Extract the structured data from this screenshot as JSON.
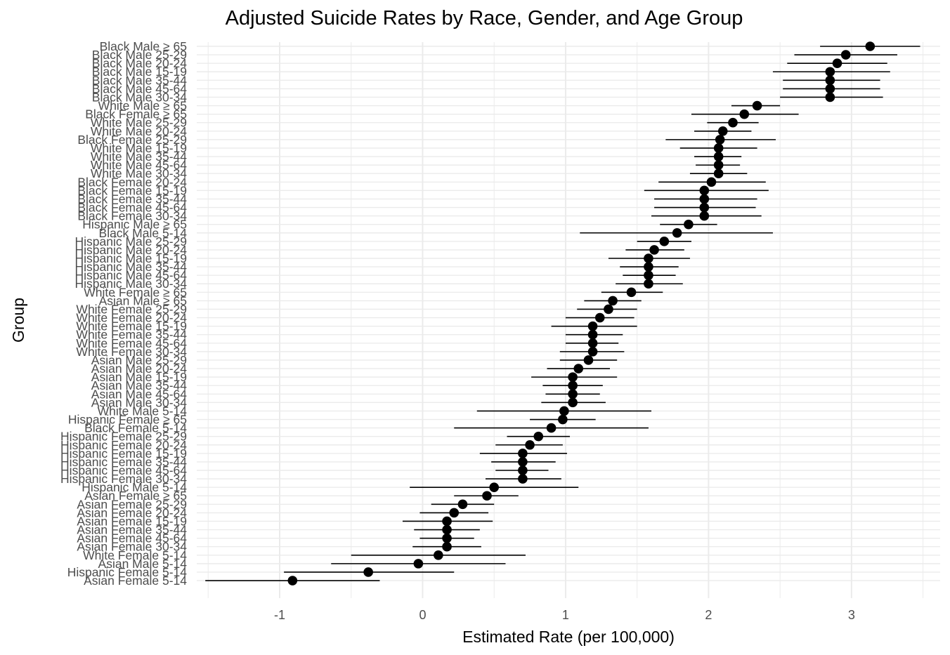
{
  "chart_data": {
    "type": "scatter",
    "title": "Adjusted Suicide Rates by Race, Gender, and Age Group",
    "xlabel": "Estimated Rate (per 100,000)",
    "ylabel": "Group",
    "xlim": [
      -1.58,
      3.62
    ],
    "xticks": [
      -1,
      0,
      1,
      2,
      3
    ],
    "grid": true,
    "legend": "none",
    "point_color": "#000000",
    "errorbar_color": "#000000",
    "grid_color": "#ebebeb",
    "points": [
      {
        "group": "Black Male ≥ 65",
        "estimate": 3.13,
        "lower": 2.78,
        "upper": 3.48
      },
      {
        "group": "Black Male 25-29",
        "estimate": 2.96,
        "lower": 2.6,
        "upper": 3.32
      },
      {
        "group": "Black Male 20-24",
        "estimate": 2.9,
        "lower": 2.55,
        "upper": 3.25
      },
      {
        "group": "Black Male 15-19",
        "estimate": 2.85,
        "lower": 2.45,
        "upper": 3.27
      },
      {
        "group": "Black Male 35-44",
        "estimate": 2.85,
        "lower": 2.52,
        "upper": 3.2
      },
      {
        "group": "Black Male 45-64",
        "estimate": 2.85,
        "lower": 2.52,
        "upper": 3.2
      },
      {
        "group": "Black Male 30-34",
        "estimate": 2.85,
        "lower": 2.5,
        "upper": 3.22
      },
      {
        "group": "White Male ≥ 65",
        "estimate": 2.34,
        "lower": 2.16,
        "upper": 2.5
      },
      {
        "group": "Black Female ≥ 65",
        "estimate": 2.25,
        "lower": 1.88,
        "upper": 2.63
      },
      {
        "group": "White Male 25-29",
        "estimate": 2.17,
        "lower": 1.99,
        "upper": 2.35
      },
      {
        "group": "White Male 20-24",
        "estimate": 2.1,
        "lower": 1.9,
        "upper": 2.3
      },
      {
        "group": "Black Female 25-29",
        "estimate": 2.08,
        "lower": 1.7,
        "upper": 2.47
      },
      {
        "group": "White Male 15-19",
        "estimate": 2.07,
        "lower": 1.8,
        "upper": 2.34
      },
      {
        "group": "White Male 35-44",
        "estimate": 2.07,
        "lower": 1.9,
        "upper": 2.23
      },
      {
        "group": "White Male 45-64",
        "estimate": 2.07,
        "lower": 1.91,
        "upper": 2.22
      },
      {
        "group": "White Male 30-34",
        "estimate": 2.07,
        "lower": 1.87,
        "upper": 2.27
      },
      {
        "group": "Black Female 20-24",
        "estimate": 2.02,
        "lower": 1.65,
        "upper": 2.4
      },
      {
        "group": "Black Female 15-19",
        "estimate": 1.97,
        "lower": 1.55,
        "upper": 2.42
      },
      {
        "group": "Black Female 35-44",
        "estimate": 1.97,
        "lower": 1.62,
        "upper": 2.34
      },
      {
        "group": "Black Female 45-64",
        "estimate": 1.97,
        "lower": 1.62,
        "upper": 2.33
      },
      {
        "group": "Black Female 30-34",
        "estimate": 1.97,
        "lower": 1.6,
        "upper": 2.37
      },
      {
        "group": "Hispanic Male ≥ 65",
        "estimate": 1.86,
        "lower": 1.66,
        "upper": 2.06
      },
      {
        "group": "Black Male 5-14",
        "estimate": 1.78,
        "lower": 1.1,
        "upper": 2.45
      },
      {
        "group": "Hispanic Male 25-29",
        "estimate": 1.69,
        "lower": 1.5,
        "upper": 1.88
      },
      {
        "group": "Hispanic Male 20-24",
        "estimate": 1.62,
        "lower": 1.42,
        "upper": 1.83
      },
      {
        "group": "Hispanic Male 15-19",
        "estimate": 1.58,
        "lower": 1.3,
        "upper": 1.87
      },
      {
        "group": "Hispanic Male 35-44",
        "estimate": 1.58,
        "lower": 1.38,
        "upper": 1.79
      },
      {
        "group": "Hispanic Male 45-64",
        "estimate": 1.58,
        "lower": 1.4,
        "upper": 1.77
      },
      {
        "group": "Hispanic Male 30-34",
        "estimate": 1.58,
        "lower": 1.35,
        "upper": 1.82
      },
      {
        "group": "White Female ≥ 65",
        "estimate": 1.46,
        "lower": 1.25,
        "upper": 1.68
      },
      {
        "group": "Asian Male ≥ 65",
        "estimate": 1.33,
        "lower": 1.13,
        "upper": 1.53
      },
      {
        "group": "White Female 25-29",
        "estimate": 1.3,
        "lower": 1.08,
        "upper": 1.5
      },
      {
        "group": "White Female 20-24",
        "estimate": 1.24,
        "lower": 1.0,
        "upper": 1.48
      },
      {
        "group": "White Female 15-19",
        "estimate": 1.19,
        "lower": 0.9,
        "upper": 1.5
      },
      {
        "group": "White Female 35-44",
        "estimate": 1.19,
        "lower": 1.0,
        "upper": 1.4
      },
      {
        "group": "White Female 45-64",
        "estimate": 1.19,
        "lower": 1.0,
        "upper": 1.37
      },
      {
        "group": "White Female 30-34",
        "estimate": 1.19,
        "lower": 0.96,
        "upper": 1.41
      },
      {
        "group": "Asian Male 25-29",
        "estimate": 1.16,
        "lower": 0.96,
        "upper": 1.36
      },
      {
        "group": "Asian Male 20-24",
        "estimate": 1.09,
        "lower": 0.87,
        "upper": 1.31
      },
      {
        "group": "Asian Male 15-19",
        "estimate": 1.05,
        "lower": 0.76,
        "upper": 1.36
      },
      {
        "group": "Asian Male 35-44",
        "estimate": 1.05,
        "lower": 0.84,
        "upper": 1.26
      },
      {
        "group": "Asian Male 45-64",
        "estimate": 1.05,
        "lower": 0.86,
        "upper": 1.24
      },
      {
        "group": "Asian Male 30-34",
        "estimate": 1.05,
        "lower": 0.83,
        "upper": 1.28
      },
      {
        "group": "White Male 5-14",
        "estimate": 0.99,
        "lower": 0.38,
        "upper": 1.6
      },
      {
        "group": "Hispanic Female ≥ 65",
        "estimate": 0.98,
        "lower": 0.75,
        "upper": 1.21
      },
      {
        "group": "Black Female 5-14",
        "estimate": 0.9,
        "lower": 0.22,
        "upper": 1.58
      },
      {
        "group": "Hispanic Female 25-29",
        "estimate": 0.81,
        "lower": 0.59,
        "upper": 1.03
      },
      {
        "group": "Hispanic Female 20-24",
        "estimate": 0.75,
        "lower": 0.51,
        "upper": 0.98
      },
      {
        "group": "Hispanic Female 15-19",
        "estimate": 0.7,
        "lower": 0.4,
        "upper": 1.01
      },
      {
        "group": "Hispanic Female 35-44",
        "estimate": 0.7,
        "lower": 0.48,
        "upper": 0.93
      },
      {
        "group": "Hispanic Female 45-64",
        "estimate": 0.7,
        "lower": 0.51,
        "upper": 0.88
      },
      {
        "group": "Hispanic Female 30-34",
        "estimate": 0.7,
        "lower": 0.44,
        "upper": 0.97
      },
      {
        "group": "Hispanic Male 5-14",
        "estimate": 0.5,
        "lower": -0.09,
        "upper": 1.09
      },
      {
        "group": "Asian Female ≥ 65",
        "estimate": 0.45,
        "lower": 0.22,
        "upper": 0.67
      },
      {
        "group": "Asian Female 25-29",
        "estimate": 0.28,
        "lower": 0.06,
        "upper": 0.5
      },
      {
        "group": "Asian Female 20-24",
        "estimate": 0.22,
        "lower": -0.02,
        "upper": 0.46
      },
      {
        "group": "Asian Female 15-19",
        "estimate": 0.17,
        "lower": -0.14,
        "upper": 0.49
      },
      {
        "group": "Asian Female 35-44",
        "estimate": 0.17,
        "lower": -0.06,
        "upper": 0.4
      },
      {
        "group": "Asian Female 45-64",
        "estimate": 0.17,
        "lower": -0.02,
        "upper": 0.36
      },
      {
        "group": "Asian Female 30-34",
        "estimate": 0.17,
        "lower": -0.07,
        "upper": 0.41
      },
      {
        "group": "White Female 5-14",
        "estimate": 0.11,
        "lower": -0.5,
        "upper": 0.72
      },
      {
        "group": "Asian Male 5-14",
        "estimate": -0.03,
        "lower": -0.64,
        "upper": 0.58
      },
      {
        "group": "Hispanic Female 5-14",
        "estimate": -0.38,
        "lower": -0.97,
        "upper": 0.22
      },
      {
        "group": "Asian Female 5-14",
        "estimate": -0.91,
        "lower": -1.52,
        "upper": -0.3
      }
    ]
  }
}
